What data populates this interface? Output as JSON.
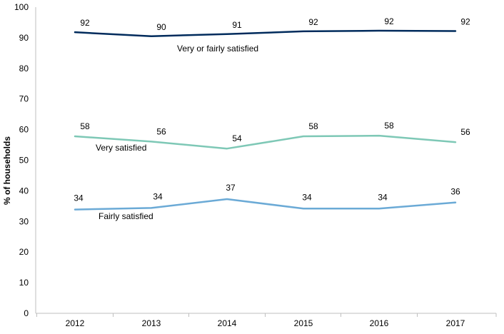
{
  "chart_data": {
    "type": "line",
    "title": "",
    "xlabel": "",
    "ylabel": "% of households",
    "ylim": [
      0,
      100
    ],
    "y_ticks": [
      "0",
      "10",
      "20",
      "30",
      "40",
      "50",
      "60",
      "70",
      "80",
      "90",
      "100"
    ],
    "categories": [
      "2012",
      "2013",
      "2014",
      "2015",
      "2016",
      "2017"
    ],
    "grid": false,
    "legend": "none",
    "series": [
      {
        "name": "Very or fairly satisfied",
        "values": [
          92,
          90,
          91,
          92,
          92,
          92
        ],
        "line_values": [
          91.8,
          90.5,
          91.2,
          92.1,
          92.3,
          92.2
        ],
        "color": "#002B5C"
      },
      {
        "name": "Very satisfied",
        "values": [
          58,
          56,
          54,
          58,
          58,
          56
        ],
        "line_values": [
          57.8,
          56.1,
          53.8,
          57.8,
          58.0,
          55.9
        ],
        "color": "#7EC8B6"
      },
      {
        "name": "Fairly satisfied",
        "values": [
          34,
          34,
          37,
          34,
          34,
          36
        ],
        "line_values": [
          33.9,
          34.4,
          37.3,
          34.2,
          34.2,
          36.2
        ],
        "color": "#6BAAD6"
      }
    ],
    "axis_color": "#bfbfbf"
  }
}
